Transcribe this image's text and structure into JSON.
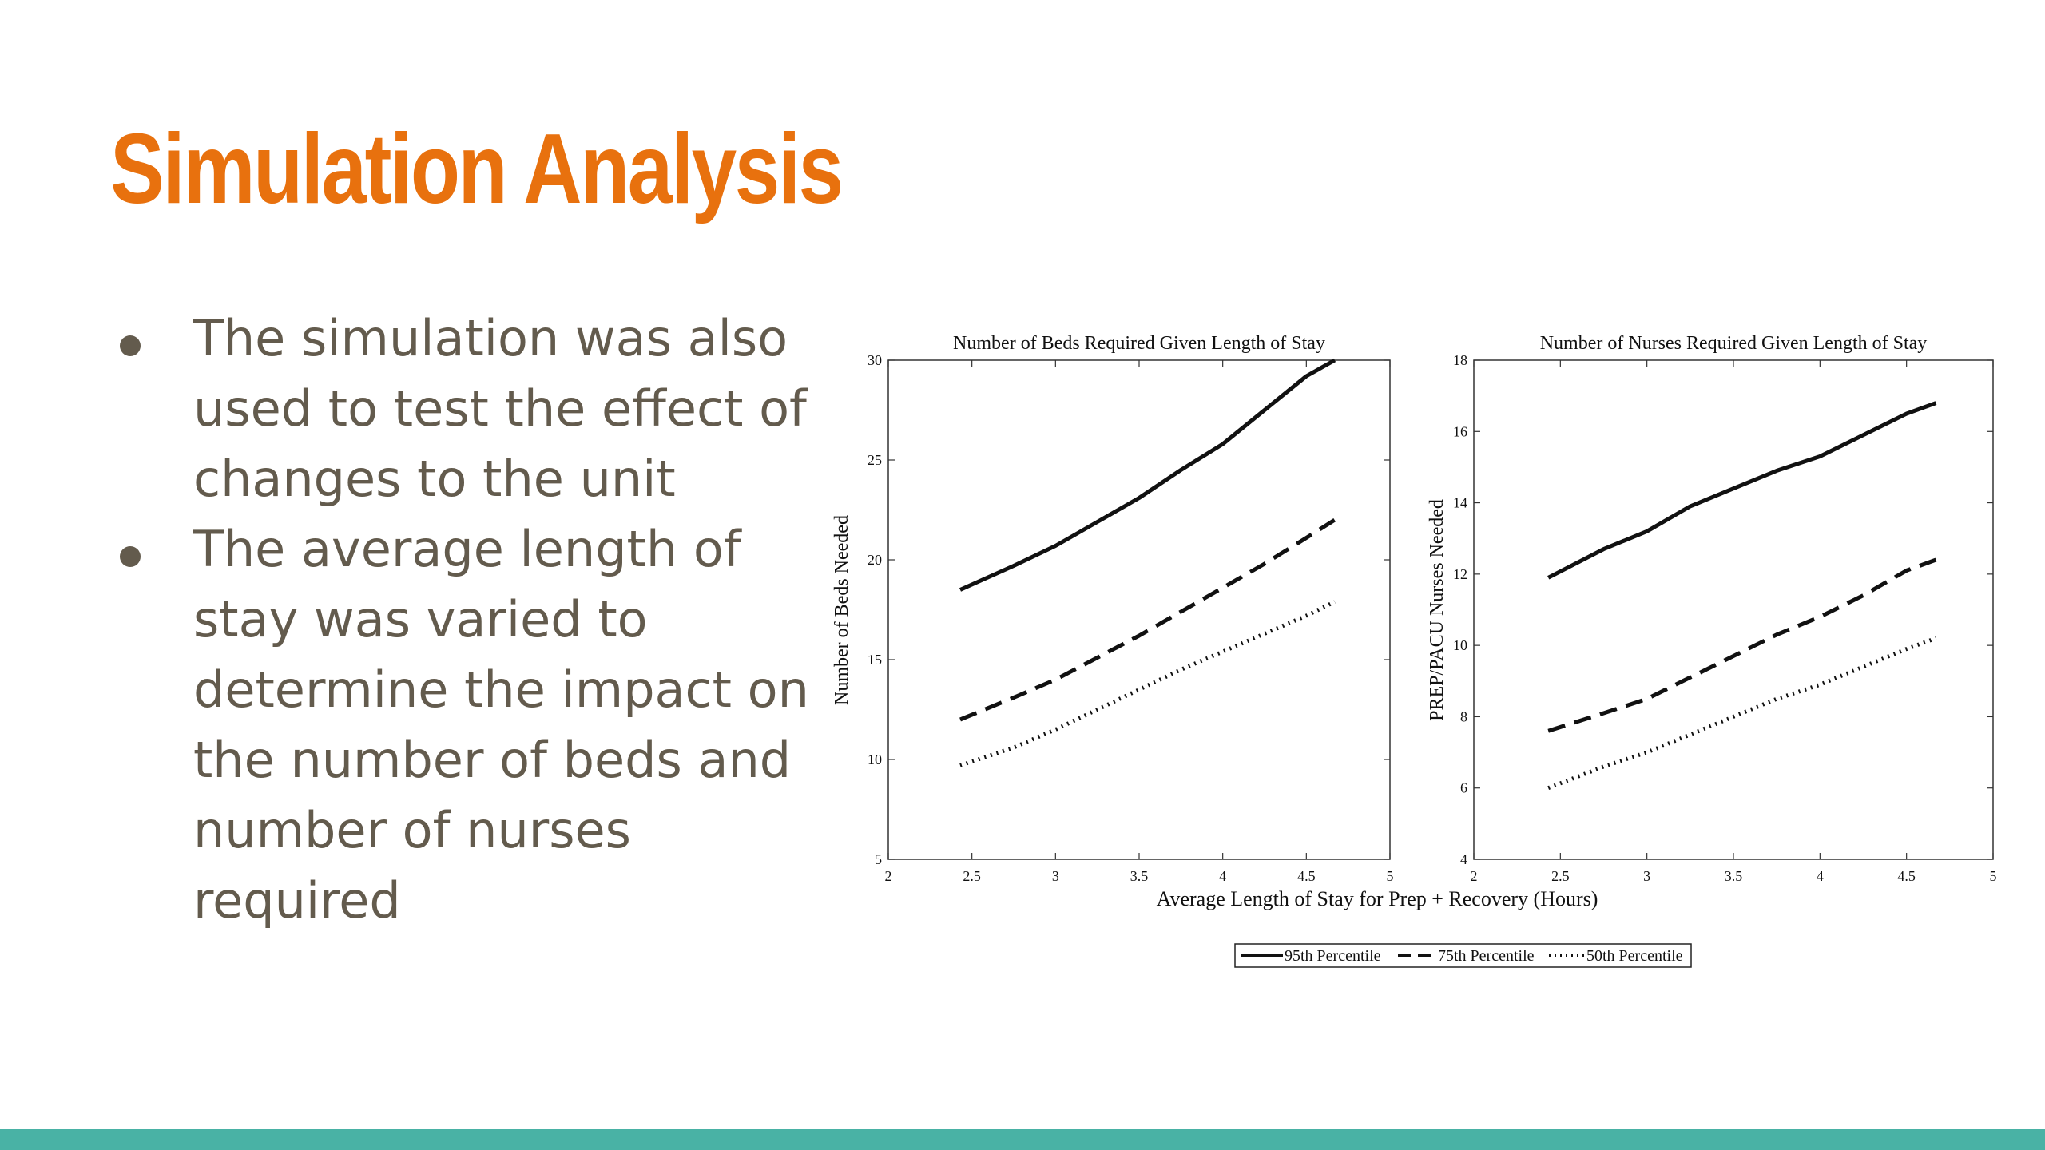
{
  "slide": {
    "title": "Simulation Analysis",
    "title_color": "#e8710e",
    "text_color": "#635b4d",
    "footer_color": "#49b2a5",
    "bullets": [
      {
        "lines": [
          "The simulation was also",
          "used to test the effect of",
          "changes to the unit"
        ]
      },
      {
        "lines": [
          "The average length of",
          "stay was varied to",
          "determine the impact on",
          "the number of beds and",
          "number of nurses",
          "required"
        ]
      }
    ]
  },
  "shared": {
    "xlabel": "Average Length of Stay for Prep + Recovery (Hours)",
    "legend": [
      {
        "label": "95th Percentile",
        "style": "solid"
      },
      {
        "label": "75th Percentile",
        "style": "dashed"
      },
      {
        "label": "50th Percentile",
        "style": "dotted"
      }
    ]
  },
  "chart_data": [
    {
      "type": "line",
      "title": "Number of Beds Required Given Length of Stay",
      "xlabel": "",
      "ylabel": "Number of Beds Needed",
      "xlim": [
        2,
        5
      ],
      "ylim": [
        5,
        30
      ],
      "xticks": [
        "2",
        "2.5",
        "3",
        "3.5",
        "4",
        "4.5",
        "5"
      ],
      "yticks": [
        "5",
        "10",
        "15",
        "20",
        "25",
        "30"
      ],
      "x": [
        2.43,
        2.75,
        3.0,
        3.25,
        3.5,
        3.75,
        4.0,
        4.25,
        4.5,
        4.67
      ],
      "series": [
        {
          "name": "95th Percentile",
          "style": "solid",
          "values": [
            18.5,
            19.7,
            20.7,
            21.9,
            23.1,
            24.5,
            25.8,
            27.5,
            29.2,
            30.0
          ]
        },
        {
          "name": "75th Percentile",
          "style": "dashed",
          "values": [
            12.0,
            13.1,
            14.0,
            15.1,
            16.2,
            17.4,
            18.6,
            19.8,
            21.1,
            22.0
          ]
        },
        {
          "name": "50th Percentile",
          "style": "dotted",
          "values": [
            9.7,
            10.6,
            11.5,
            12.5,
            13.5,
            14.5,
            15.4,
            16.3,
            17.2,
            17.9
          ]
        }
      ]
    },
    {
      "type": "line",
      "title": "Number of Nurses Required Given Length of Stay",
      "xlabel": "",
      "ylabel": "PREP/PACU Nurses Needed",
      "xlim": [
        2,
        5
      ],
      "ylim": [
        4,
        18
      ],
      "xticks": [
        "2",
        "2.5",
        "3",
        "3.5",
        "4",
        "4.5",
        "5"
      ],
      "yticks": [
        "4",
        "6",
        "8",
        "10",
        "12",
        "14",
        "16",
        "18"
      ],
      "x": [
        2.43,
        2.75,
        3.0,
        3.25,
        3.5,
        3.75,
        4.0,
        4.25,
        4.5,
        4.67
      ],
      "series": [
        {
          "name": "95th Percentile",
          "style": "solid",
          "values": [
            11.9,
            12.7,
            13.2,
            13.9,
            14.4,
            14.9,
            15.3,
            15.9,
            16.5,
            16.8
          ]
        },
        {
          "name": "75th Percentile",
          "style": "dashed",
          "values": [
            7.6,
            8.1,
            8.5,
            9.1,
            9.7,
            10.3,
            10.8,
            11.4,
            12.1,
            12.4
          ]
        },
        {
          "name": "50th Percentile",
          "style": "dotted",
          "values": [
            6.0,
            6.6,
            7.0,
            7.5,
            8.0,
            8.5,
            8.9,
            9.4,
            9.9,
            10.2
          ]
        }
      ]
    }
  ]
}
